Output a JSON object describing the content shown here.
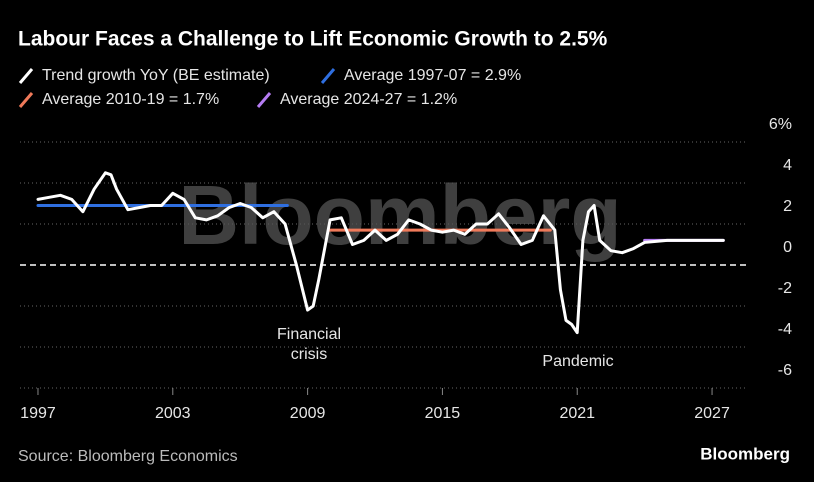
{
  "chart_data": {
    "type": "line",
    "title": "Labour Faces a Challenge to Lift Economic Growth to 2.5%",
    "source": "Source: Bloomberg Economics",
    "logo": "Bloomberg",
    "watermark": "Bloomberg",
    "annotations": [
      [
        "Financial",
        "crisis"
      ],
      [
        "Pandemic"
      ]
    ],
    "xlim": [
      1996.2,
      2028.6
    ],
    "xticks": [
      1997,
      2003,
      2009,
      2015,
      2021,
      2027
    ],
    "ylim": [
      -6,
      6
    ],
    "yticks": [
      {
        "value": 6,
        "label": "6%"
      },
      4,
      2,
      0,
      -2,
      -4,
      -6
    ],
    "grid": true,
    "series": [
      {
        "name": "Trend growth YoY (BE estimate)",
        "color": "#ffffff",
        "x": [
          1997,
          1997.5,
          1998,
          1998.5,
          1999,
          1999.5,
          2000,
          2000.25,
          2000.5,
          2001,
          2001.5,
          2002,
          2002.5,
          2003,
          2003.5,
          2004,
          2004.5,
          2005,
          2005.5,
          2006,
          2006.5,
          2007,
          2007.5,
          2008,
          2008.5,
          2009,
          2009.25,
          2009.5,
          2010,
          2010.5,
          2011,
          2011.5,
          2012,
          2012.5,
          2013,
          2013.5,
          2014,
          2014.5,
          2015,
          2015.5,
          2016,
          2016.5,
          2017,
          2017.5,
          2018,
          2018.5,
          2019,
          2019.5,
          2020,
          2020.25,
          2020.5,
          2020.75,
          2021,
          2021.25,
          2021.5,
          2021.75,
          2022,
          2022.5,
          2023,
          2023.5,
          2024,
          2025,
          2026,
          2027,
          2027.5
        ],
        "values": [
          3.2,
          3.3,
          3.4,
          3.2,
          2.6,
          3.7,
          4.5,
          4.4,
          3.7,
          2.7,
          2.8,
          2.9,
          2.9,
          3.5,
          3.2,
          2.3,
          2.2,
          2.4,
          2.8,
          3.0,
          2.8,
          2.3,
          2.6,
          2.0,
          0.0,
          -2.2,
          -2.0,
          -0.7,
          2.2,
          2.3,
          1.0,
          1.2,
          1.7,
          1.2,
          1.5,
          2.2,
          2.0,
          1.7,
          1.6,
          1.7,
          1.5,
          2.0,
          2.0,
          2.5,
          1.8,
          1.0,
          1.2,
          2.4,
          1.7,
          -1.2,
          -2.7,
          -2.9,
          -3.3,
          1.2,
          2.6,
          2.9,
          1.2,
          0.7,
          0.6,
          0.8,
          1.1,
          1.2,
          1.2,
          1.2,
          1.2
        ]
      },
      {
        "name": "Average 1997-07 = 2.9%",
        "color": "#2f6fe0",
        "x": [
          1997,
          2008.1
        ],
        "values": [
          2.9,
          2.9
        ]
      },
      {
        "name": "Average 2010-19 = 1.7%",
        "color": "#f07a5a",
        "x": [
          2010,
          2019.8
        ],
        "values": [
          1.7,
          1.7
        ]
      },
      {
        "name": "Average 2024-27 = 1.2%",
        "color": "#b57cf2",
        "x": [
          2024,
          2027.5
        ],
        "values": [
          1.2,
          1.2
        ]
      }
    ]
  }
}
